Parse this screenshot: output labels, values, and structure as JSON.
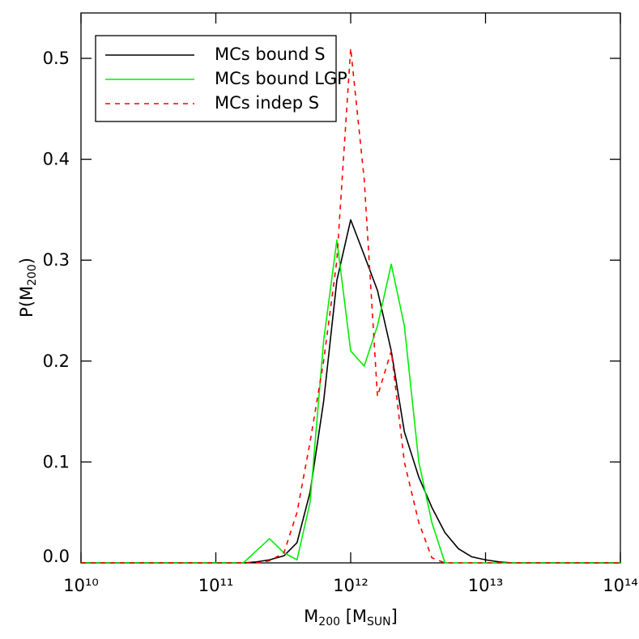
{
  "chart_data": {
    "type": "line",
    "x_label": [
      {
        "text": "M"
      },
      {
        "text": "200",
        "sub": true
      },
      {
        "text": " [M"
      },
      {
        "text": "SUN",
        "sub": true
      },
      {
        "text": "]"
      }
    ],
    "y_label": [
      {
        "text": "P(M"
      },
      {
        "text": "200",
        "sub": true
      },
      {
        "text": ")"
      }
    ],
    "x": [
      10000000000.0,
      160000000000.0,
      200000000000.0,
      250000000000.0,
      320000000000.0,
      400000000000.0,
      500000000000.0,
      630000000000.0,
      790000000000.0,
      1000000000000.0,
      1260000000000.0,
      1580000000000.0,
      2000000000000.0,
      2500000000000.0,
      3200000000000.0,
      4000000000000.0,
      5000000000000.0,
      6300000000000.0,
      7900000000000.0,
      10000000000000.0,
      12600000000000.0,
      15800000000000.0,
      100000000000000.0
    ],
    "series": [
      {
        "name": "MCs bound S",
        "color": "#000000",
        "dashed": false,
        "values": [
          0,
          0,
          0.001,
          0.003,
          0.007,
          0.02,
          0.07,
          0.16,
          0.28,
          0.34,
          0.305,
          0.27,
          0.21,
          0.13,
          0.085,
          0.055,
          0.03,
          0.014,
          0.006,
          0.003,
          0.001,
          0,
          0
        ]
      },
      {
        "name": "MCs bound LGP",
        "color": "#00ee00",
        "dashed": false,
        "values": [
          0,
          0,
          0.012,
          0.024,
          0.01,
          0.003,
          0.06,
          0.22,
          0.32,
          0.21,
          0.195,
          0.235,
          0.296,
          0.235,
          0.1,
          0.04,
          0,
          0,
          0,
          0,
          0,
          0,
          0
        ]
      },
      {
        "name": "MCs indep S",
        "color": "#ff0000",
        "dashed": true,
        "values": [
          0,
          0,
          0,
          0.002,
          0.01,
          0.05,
          0.12,
          0.2,
          0.3,
          0.51,
          0.38,
          0.165,
          0.21,
          0.1,
          0.04,
          0.005,
          0,
          0,
          0,
          0,
          0,
          0,
          0
        ]
      }
    ],
    "xlog": true,
    "xlim": [
      10000000000.0,
      100000000000000.0
    ],
    "xticks": [
      {
        "value": 10000000000.0,
        "label": "10¹⁰"
      },
      {
        "value": 100000000000.0,
        "label": "10¹¹"
      },
      {
        "value": 1000000000000.0,
        "label": "10¹²"
      },
      {
        "value": 10000000000000.0,
        "label": "10¹³"
      },
      {
        "value": 100000000000000.0,
        "label": "10¹⁴"
      }
    ],
    "ylim": [
      0,
      0.545
    ],
    "yticks": [
      {
        "value": 0,
        "label": "0.0"
      },
      0.1,
      0.2,
      0.3,
      0.4,
      0.5
    ],
    "legend": "upper left"
  }
}
